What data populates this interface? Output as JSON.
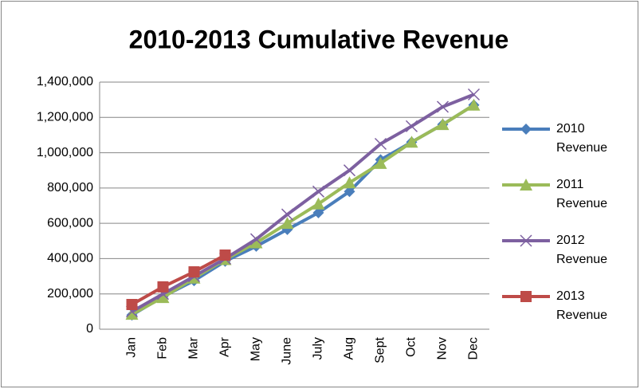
{
  "chart_data": {
    "type": "line",
    "title": "2010-2013 Cumulative Revenue",
    "categories": [
      "Jan",
      "Feb",
      "Mar",
      "Apr",
      "May",
      "June",
      "July",
      "Aug",
      "Sept",
      "Oct",
      "Nov",
      "Dec"
    ],
    "series": [
      {
        "name": "2010 Revenue",
        "color": "#4a7ebb",
        "marker": "diamond",
        "values": [
          80000,
          185000,
          275000,
          385000,
          470000,
          565000,
          660000,
          780000,
          960000,
          1060000,
          1160000,
          1270000
        ]
      },
      {
        "name": "2011 Revenue",
        "color": "#9bbb59",
        "marker": "triangle",
        "values": [
          85000,
          180000,
          290000,
          395000,
          490000,
          600000,
          710000,
          830000,
          940000,
          1060000,
          1160000,
          1270000
        ]
      },
      {
        "name": "2012 Revenue",
        "color": "#7d60a0",
        "marker": "x",
        "values": [
          100000,
          200000,
          300000,
          400000,
          510000,
          650000,
          780000,
          900000,
          1050000,
          1150000,
          1260000,
          1330000
        ]
      },
      {
        "name": "2013 Revenue",
        "color": "#be4b48",
        "marker": "square",
        "values": [
          140000,
          240000,
          325000,
          420000,
          null,
          null,
          null,
          null,
          null,
          null,
          null,
          null
        ]
      }
    ],
    "ylim": [
      0,
      1400000
    ],
    "yticks": [
      0,
      {
        "value": 200000,
        "label": "200,000"
      },
      {
        "value": 400000,
        "label": "400,000"
      },
      {
        "value": 600000,
        "label": "600,000"
      },
      {
        "value": 800000,
        "label": "800,000"
      },
      {
        "value": 1000000,
        "label": "1,000,000"
      },
      {
        "value": 1200000,
        "label": "1,200,000"
      },
      {
        "value": 1400000,
        "label": "1,400,000"
      }
    ],
    "grid": true,
    "legend": "right"
  }
}
